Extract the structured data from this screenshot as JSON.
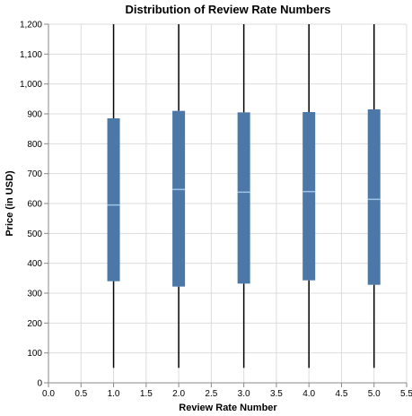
{
  "chart_data": {
    "type": "boxplot",
    "title": "Distribution of Review Rate Numbers",
    "xlabel": "Review Rate Number",
    "ylabel": "Price (in USD)",
    "xlim": [
      0,
      5.5
    ],
    "ylim": [
      0,
      1200
    ],
    "x_ticks": [
      "0.0",
      "0.5",
      "1.0",
      "1.5",
      "2.0",
      "2.5",
      "3.0",
      "3.5",
      "4.0",
      "4.5",
      "5.0",
      "5.5"
    ],
    "y_ticks": [
      "0",
      "100",
      "200",
      "300",
      "400",
      "500",
      "600",
      "700",
      "800",
      "900",
      "1,000",
      "1,100",
      "1,200"
    ],
    "grid": true,
    "colors": {
      "box": "#4c78a8",
      "median": "#9dc3e6",
      "whisker": "#000000",
      "grid": "#dddddd"
    },
    "boxes": [
      {
        "x": 1,
        "min": 50,
        "q1": 340,
        "median": 595,
        "q3": 885,
        "max": 1200
      },
      {
        "x": 2,
        "min": 50,
        "q1": 322,
        "median": 647,
        "q3": 910,
        "max": 1200
      },
      {
        "x": 3,
        "min": 50,
        "q1": 332,
        "median": 638,
        "q3": 905,
        "max": 1200
      },
      {
        "x": 4,
        "min": 50,
        "q1": 343,
        "median": 640,
        "q3": 906,
        "max": 1200
      },
      {
        "x": 5,
        "min": 50,
        "q1": 328,
        "median": 614,
        "q3": 915,
        "max": 1200
      }
    ]
  }
}
